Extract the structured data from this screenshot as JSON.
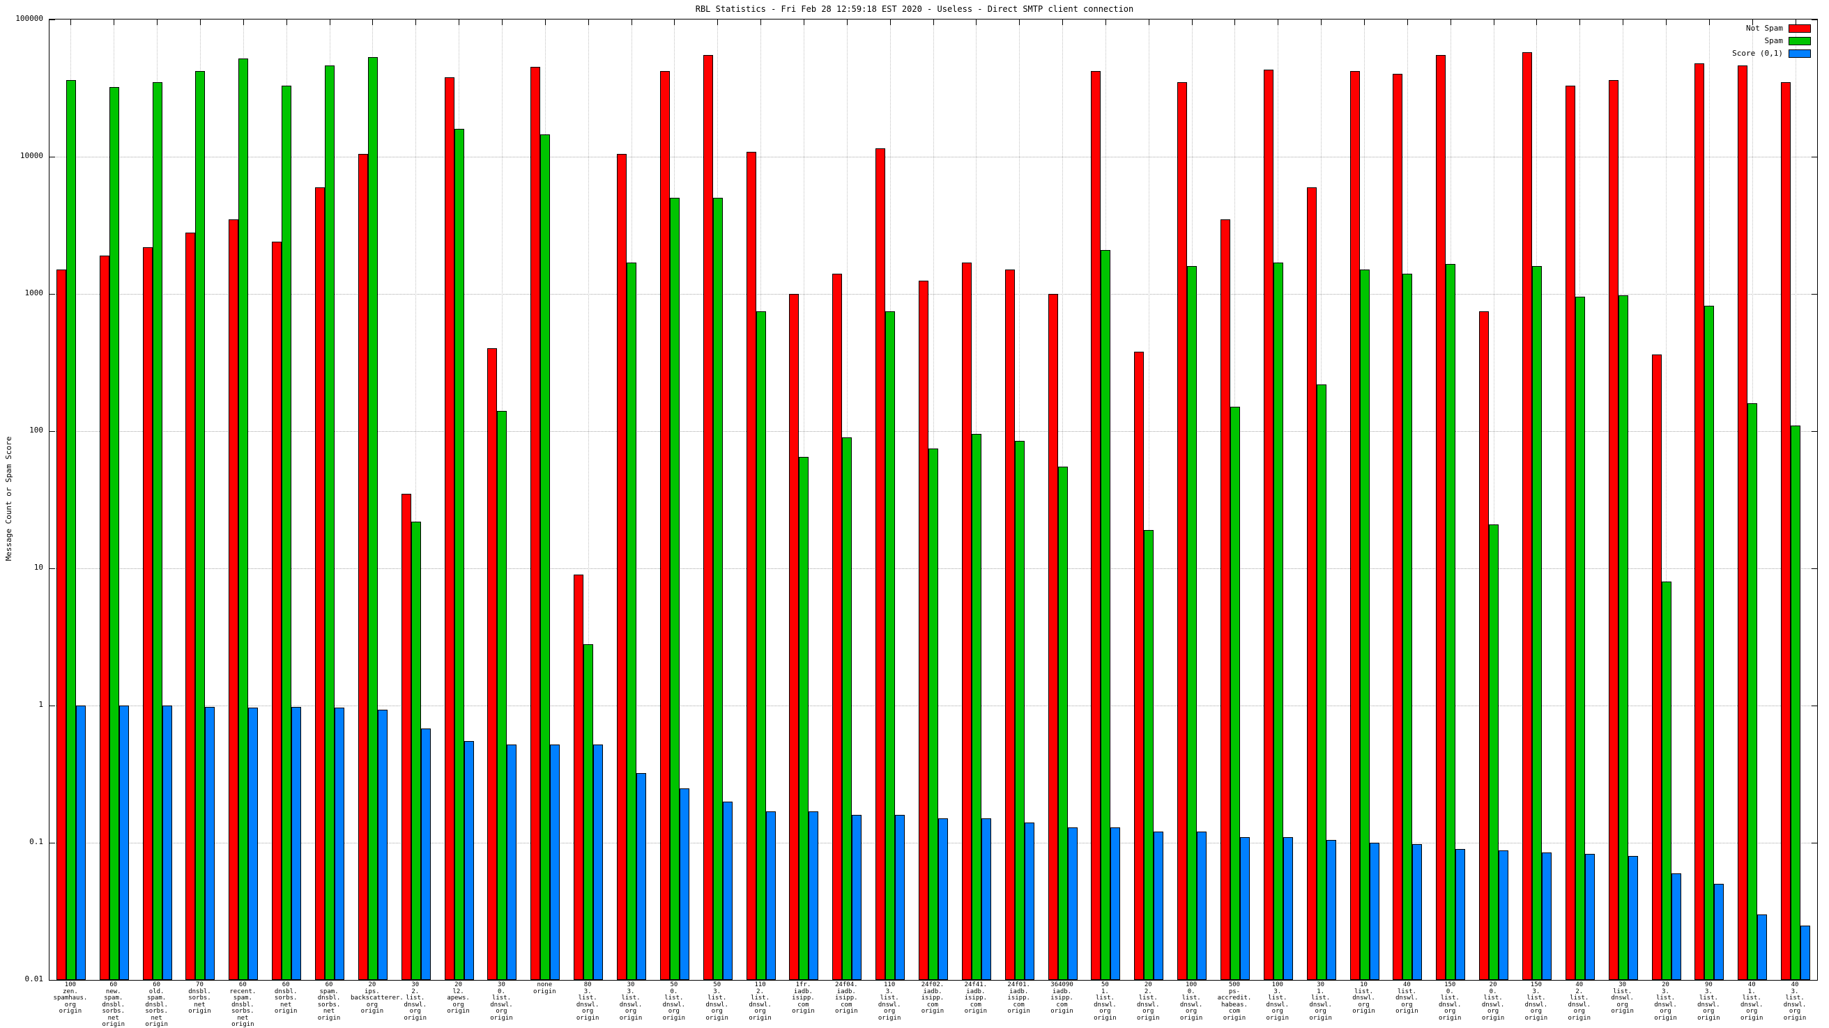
{
  "chart_data": {
    "type": "bar",
    "title": "RBL Statistics - Fri Feb 28 12:59:18 EST 2020 - Useless - Direct SMTP client connection",
    "ylabel": "Message Count or Spam Score",
    "xlabel": "",
    "y_scale": "log",
    "ylim": [
      0.01,
      100000
    ],
    "y_ticks": [
      0.01,
      0.1,
      1,
      10,
      100,
      1000,
      10000,
      100000
    ],
    "y_tick_labels": [
      "0.01",
      "0.1",
      "1",
      "10",
      "100",
      "1000",
      "10000",
      "100000"
    ],
    "grid": true,
    "legend_position": "top-right",
    "background_color": "#ffffff",
    "categories": [
      "100\nzen.\nspamhaus.\norg\norigin",
      "60\nnew.\nspam.\ndnsbl.\nsorbs.\nnet\norigin",
      "60\nold.\nspam.\ndnsbl.\nsorbs.\nnet\norigin",
      "70\ndnsbl.\nsorbs.\nnet\norigin",
      "60\nrecent.\nspam.\ndnsbl.\nsorbs.\nnet\norigin",
      "60\ndnsbl.\nsorbs.\nnet\norigin",
      "60\nspam.\ndnsbl.\nsorbs.\nnet\norigin",
      "20\nips.\nbackscatterer.\norg\norigin",
      "30\n2.\nlist.\ndnswl.\norg\norigin",
      "20\nl2.\napews.\norg\norigin",
      "30\n0.\nlist.\ndnswl.\norg\norigin",
      "none\norigin",
      "80\n3.\nlist.\ndnswl.\norg\norigin",
      "30\n3.\nlist.\ndnswl.\norg\norigin",
      "50\n0.\nlist.\ndnswl.\norg\norigin",
      "50\n3.\nlist.\ndnswl.\norg\norigin",
      "110\n2.\nlist.\ndnswl.\norg\norigin",
      "1fr.\niadb.\nisipp.\ncom\norigin",
      "24f04.\niadb.\nisipp.\ncom\norigin",
      "110\n3.\nlist.\ndnswl.\norg\norigin",
      "24f02.\niadb.\nisipp.\ncom\norigin",
      "24f41.\niadb.\nisipp.\ncom\norigin",
      "24f01.\niadb.\nisipp.\ncom\norigin",
      "364090\niadb.\nisipp.\ncom\norigin",
      "50\n1.\nlist.\ndnswl.\norg\norigin",
      "20\n2.\nlist.\ndnswl.\norg\norigin",
      "100\n0.\nlist.\ndnswl.\norg\norigin",
      "500\nps-accredit.\nhabeas.\ncom\norigin",
      "100\n3.\nlist.\ndnswl.\norg\norigin",
      "30\n1.\nlist.\ndnswl.\norg\norigin",
      "10\nlist.\ndnswl.\norg\norigin",
      "40\nlist.\ndnswl.\norg\norigin",
      "150\n0.\nlist.\ndnswl.\norg\norigin",
      "20\n0.\nlist.\ndnswl.\norg\norigin",
      "150\n3.\nlist.\ndnswl.\norg\norigin",
      "40\n2.\nlist.\ndnswl.\norg\norigin",
      "30\nlist.\ndnswl.\norg\norigin",
      "20\n3.\nlist.\ndnswl.\norg\norigin",
      "90\n3.\nlist.\ndnswl.\norg\norigin",
      "40\n1.\nlist.\ndnswl.\norg\norigin",
      "40\n3.\nlist.\ndnswl.\norg\norigin"
    ],
    "series": [
      {
        "key": "not-spam",
        "name": "Not Spam",
        "color": "#ff0000",
        "values": [
          1500,
          1900,
          2200,
          2800,
          3500,
          2400,
          6000,
          10500,
          35,
          38000,
          400,
          45000,
          9,
          10500,
          42000,
          55000,
          10800,
          1000,
          1400,
          11500,
          1250,
          1700,
          1500,
          1000,
          42000,
          380,
          35000,
          3500,
          43000,
          6000,
          42000,
          40000,
          55000,
          750,
          58000,
          33000,
          36000,
          360,
          48000,
          46000,
          35000
        ]
      },
      {
        "key": "spam",
        "name": "Spam",
        "color": "#00c400",
        "values": [
          36000,
          32000,
          35000,
          42000,
          52000,
          33000,
          46000,
          53000,
          22,
          16000,
          140,
          14500,
          2.8,
          1700,
          5000,
          5000,
          750,
          65,
          90,
          750,
          75,
          95,
          85,
          55,
          2100,
          19,
          1600,
          150,
          1700,
          220,
          1500,
          1400,
          1650,
          21,
          1600,
          950,
          980,
          8,
          820,
          160,
          110
        ]
      },
      {
        "key": "score",
        "name": "Score (0,1)",
        "color": "#0080ff",
        "values": [
          1.0,
          1.0,
          1.0,
          0.98,
          0.97,
          0.98,
          0.97,
          0.93,
          0.68,
          0.55,
          0.52,
          0.52,
          0.52,
          0.32,
          0.25,
          0.2,
          0.17,
          0.17,
          0.16,
          0.16,
          0.15,
          0.15,
          0.14,
          0.13,
          0.13,
          0.12,
          0.12,
          0.11,
          0.11,
          0.105,
          0.1,
          0.098,
          0.09,
          0.088,
          0.085,
          0.083,
          0.08,
          0.06,
          0.05,
          0.03,
          0.025
        ]
      }
    ]
  }
}
